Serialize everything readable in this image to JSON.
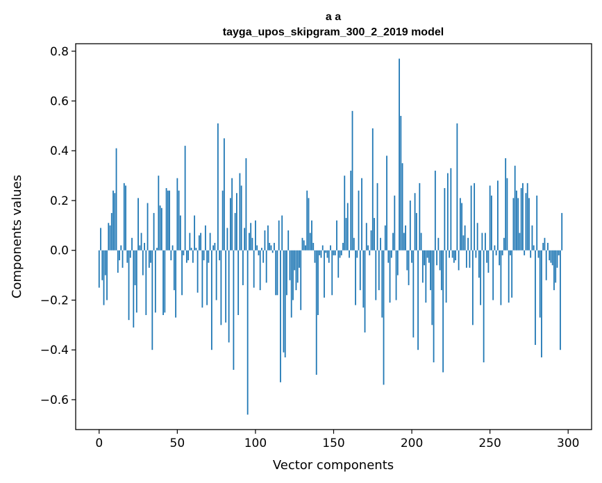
{
  "chart_data": {
    "type": "bar",
    "title_line1": "a a",
    "title_line2": "tayga_upos_skipgram_300_2_2019 model",
    "xlabel": "Vector components",
    "ylabel": "Components values",
    "xlim": [
      -15,
      315
    ],
    "ylim": [
      -0.72,
      0.83
    ],
    "xticks": [
      0,
      50,
      100,
      150,
      200,
      250,
      300
    ],
    "xtick_labels": [
      "0",
      "50",
      "100",
      "150",
      "200",
      "250",
      "300"
    ],
    "yticks": [
      -0.6,
      -0.4,
      -0.2,
      0.0,
      0.2,
      0.4,
      0.6,
      0.8
    ],
    "ytick_labels": [
      "−0.6",
      "−0.4",
      "−0.2",
      "0.0",
      "0.2",
      "0.4",
      "0.6",
      "0.8"
    ],
    "bar_color": "#1f77b4",
    "values": [
      -0.15,
      0.09,
      -0.12,
      -0.22,
      -0.1,
      -0.2,
      0.11,
      0.1,
      0.15,
      0.24,
      0.23,
      0.41,
      -0.09,
      -0.04,
      0.02,
      -0.07,
      0.27,
      0.26,
      -0.05,
      -0.28,
      -0.03,
      0.05,
      -0.31,
      -0.14,
      -0.25,
      0.21,
      0.02,
      0.07,
      -0.1,
      0.03,
      -0.26,
      0.19,
      -0.07,
      -0.05,
      -0.4,
      0.15,
      -0.25,
      0.01,
      0.3,
      0.18,
      0.17,
      -0.26,
      -0.25,
      0.25,
      0.24,
      0.24,
      -0.04,
      0.02,
      -0.16,
      -0.27,
      0.29,
      0.24,
      0.14,
      -0.18,
      -0.02,
      0.42,
      -0.05,
      -0.04,
      0.07,
      0.01,
      -0.05,
      0.14,
      0.01,
      -0.17,
      0.06,
      0.07,
      -0.23,
      -0.04,
      0.1,
      -0.22,
      -0.05,
      0.07,
      -0.4,
      0.02,
      0.03,
      -0.2,
      0.51,
      -0.04,
      -0.3,
      0.24,
      0.45,
      -0.29,
      0.09,
      -0.37,
      0.21,
      0.29,
      -0.48,
      0.15,
      0.23,
      -0.26,
      0.31,
      0.26,
      -0.14,
      0.09,
      0.37,
      -0.66,
      0.07,
      0.11,
      0.05,
      -0.15,
      0.12,
      0.02,
      -0.02,
      -0.16,
      0.01,
      -0.05,
      0.08,
      -0.13,
      0.1,
      0.03,
      0.02,
      -0.01,
      0.03,
      -0.18,
      -0.18,
      0.12,
      -0.53,
      0.14,
      -0.41,
      -0.43,
      -0.18,
      0.08,
      -0.12,
      -0.27,
      -0.2,
      -0.08,
      -0.16,
      -0.13,
      -0.07,
      -0.24,
      0.05,
      0.04,
      0.02,
      0.24,
      0.21,
      0.07,
      0.12,
      0.03,
      -0.05,
      -0.5,
      -0.26,
      -0.02,
      -0.03,
      0.02,
      -0.19,
      -0.01,
      -0.03,
      -0.05,
      0.02,
      -0.18,
      -0.02,
      -0.02,
      0.12,
      -0.11,
      -0.03,
      -0.02,
      0.03,
      0.3,
      0.13,
      0.19,
      -0.03,
      0.32,
      0.56,
      0.05,
      -0.22,
      -0.03,
      0.24,
      -0.16,
      0.29,
      -0.23,
      -0.33,
      0.11,
      0.02,
      -0.02,
      0.08,
      0.49,
      0.13,
      -0.2,
      0.27,
      -0.16,
      0.05,
      -0.27,
      -0.54,
      0.1,
      0.38,
      -0.05,
      -0.21,
      -0.03,
      0.07,
      0.22,
      -0.2,
      -0.1,
      0.77,
      0.54,
      0.35,
      0.07,
      0.1,
      -0.08,
      -0.14,
      0.2,
      -0.05,
      -0.35,
      0.23,
      0.15,
      -0.4,
      0.27,
      0.07,
      -0.13,
      -0.06,
      -0.21,
      -0.03,
      -0.05,
      -0.16,
      -0.3,
      -0.45,
      0.32,
      -0.06,
      0.05,
      -0.08,
      -0.16,
      -0.49,
      0.25,
      -0.21,
      0.31,
      -0.03,
      0.33,
      -0.03,
      -0.05,
      -0.04,
      0.51,
      -0.08,
      0.21,
      0.19,
      0.06,
      0.1,
      -0.07,
      0.05,
      -0.07,
      0.26,
      -0.3,
      0.27,
      -0.03,
      0.11,
      -0.11,
      -0.22,
      0.07,
      -0.45,
      0.07,
      -0.05,
      -0.09,
      0.26,
      0.22,
      -0.2,
      0.02,
      -0.02,
      0.28,
      -0.06,
      -0.22,
      -0.02,
      0.05,
      0.37,
      0.29,
      -0.21,
      -0.02,
      -0.19,
      0.21,
      0.34,
      0.24,
      0.21,
      0.07,
      0.25,
      0.27,
      -0.02,
      0.23,
      0.27,
      0.21,
      -0.03,
      0.1,
      0.02,
      -0.38,
      0.22,
      -0.03,
      -0.27,
      -0.43,
      0.03,
      0.05,
      -0.12,
      0.03,
      -0.04,
      -0.05,
      -0.06,
      -0.16,
      -0.13,
      -0.07,
      -0.02,
      -0.4,
      0.15
    ]
  }
}
